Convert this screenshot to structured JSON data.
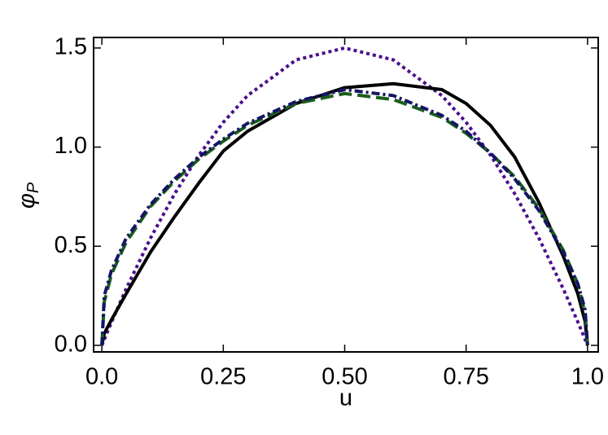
{
  "chart_data": {
    "type": "line",
    "xlabel": "u",
    "ylabel": "φ",
    "ylabel_subscript": "P",
    "x": [
      0,
      0.005,
      0.02,
      0.05,
      0.1,
      0.15,
      0.2,
      0.25,
      0.3,
      0.4,
      0.5,
      0.6,
      0.7,
      0.75,
      0.8,
      0.85,
      0.9,
      0.95,
      0.98,
      0.995,
      1
    ],
    "series": [
      {
        "color": "#4b0f8c",
        "dash": "4,4",
        "values": [
          0,
          0.03,
          0.118,
          0.285,
          0.54,
          0.765,
          0.96,
          1.125,
          1.26,
          1.44,
          1.5,
          1.44,
          1.26,
          1.125,
          0.96,
          0.765,
          0.54,
          0.285,
          0.118,
          0.03,
          0
        ]
      },
      {
        "color": "#000000",
        "dash": "none",
        "values": [
          0,
          0.06,
          0.13,
          0.26,
          0.47,
          0.65,
          0.82,
          0.98,
          1.08,
          1.22,
          1.3,
          1.32,
          1.29,
          1.22,
          1.11,
          0.95,
          0.72,
          0.45,
          0.26,
          0.12,
          0
        ]
      },
      {
        "color": "#1a5e1a",
        "dash": "16,7",
        "values": [
          0,
          0.22,
          0.36,
          0.52,
          0.7,
          0.83,
          0.94,
          1.03,
          1.11,
          1.22,
          1.27,
          1.24,
          1.15,
          1.07,
          0.97,
          0.85,
          0.69,
          0.48,
          0.31,
          0.16,
          0
        ]
      },
      {
        "color": "#141466",
        "dash": "10,4,3,4",
        "values": [
          0,
          0.25,
          0.38,
          0.54,
          0.71,
          0.84,
          0.95,
          1.04,
          1.12,
          1.23,
          1.29,
          1.26,
          1.16,
          1.08,
          0.97,
          0.84,
          0.68,
          0.47,
          0.31,
          0.18,
          0
        ]
      }
    ],
    "xlim": [
      -0.017,
      1.022
    ],
    "xticks": [
      {
        "value": 0,
        "label": "0.0"
      },
      0.25,
      {
        "value": 0.5,
        "label": "0.50"
      },
      0.75,
      {
        "value": 1,
        "label": "1.0"
      }
    ],
    "ylim": [
      -0.033,
      1.553
    ],
    "yticks": [
      {
        "value": 0,
        "label": "0.0"
      },
      0.5,
      {
        "value": 1,
        "label": "1.0"
      },
      1.5
    ],
    "grid": false
  }
}
